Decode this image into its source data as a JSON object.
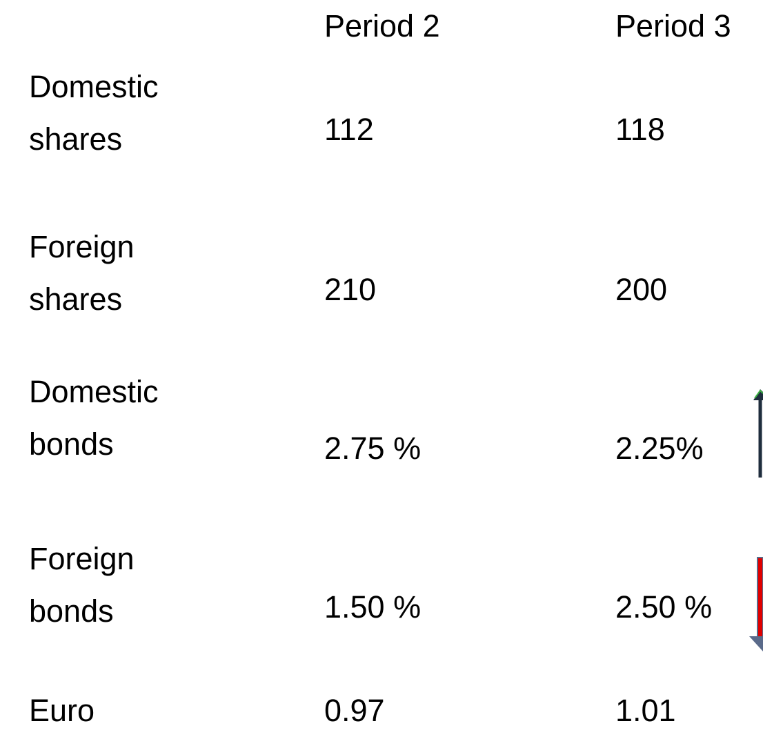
{
  "table": {
    "columns": [
      "Period 2",
      "Period 3"
    ],
    "rows": [
      {
        "label": "Domestic shares",
        "values": [
          "112",
          "118"
        ]
      },
      {
        "label": "Foreign shares",
        "values": [
          "210",
          "200"
        ]
      },
      {
        "label": "Domestic bonds",
        "values": [
          "2.75 %",
          "2.25%"
        ]
      },
      {
        "label": "Foreign bonds",
        "values": [
          "1.50 %",
          "2.50 %"
        ]
      },
      {
        "label": "Euro",
        "values": [
          "0.97",
          "1.01"
        ]
      }
    ]
  }
}
